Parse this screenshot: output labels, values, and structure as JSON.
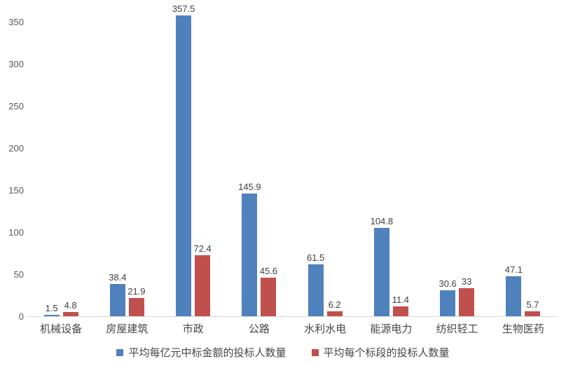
{
  "chart_data": {
    "type": "bar",
    "title": "",
    "categories": [
      "机械设备",
      "房屋建筑",
      "市政",
      "公路",
      "水利水电",
      "能源电力",
      "纺织轻工",
      "生物医药"
    ],
    "series": [
      {
        "name": "平均每亿元中标金额的投标人数量",
        "color": "#4F81BD",
        "values": [
          1.5,
          38.4,
          357.5,
          145.9,
          61.5,
          104.8,
          30.6,
          47.1
        ],
        "labels": [
          "1.5",
          "38.4",
          "357.5",
          "145.9",
          "61.5",
          "104.8",
          "30.6",
          "47.1"
        ]
      },
      {
        "name": "平均每个标段的投标人数量",
        "color": "#C0504D",
        "values": [
          4.8,
          21.9,
          72.4,
          45.6,
          6.2,
          11.4,
          33,
          5.7
        ],
        "labels": [
          "4.8",
          "21.9",
          "72.4",
          "45.6",
          "6.2",
          "11.4",
          "33",
          "5.7"
        ]
      }
    ],
    "yticks": [
      0,
      50,
      100,
      150,
      200,
      250,
      300,
      350
    ],
    "ylim": [
      0,
      358
    ],
    "grid": false,
    "legend_position": "bottom",
    "colors": {
      "axis_line": "#D9D9D9",
      "tick_label": "#595959",
      "data_label": "#3F3F3F",
      "category_label": "#464646",
      "background": "#FFFFFF"
    }
  }
}
